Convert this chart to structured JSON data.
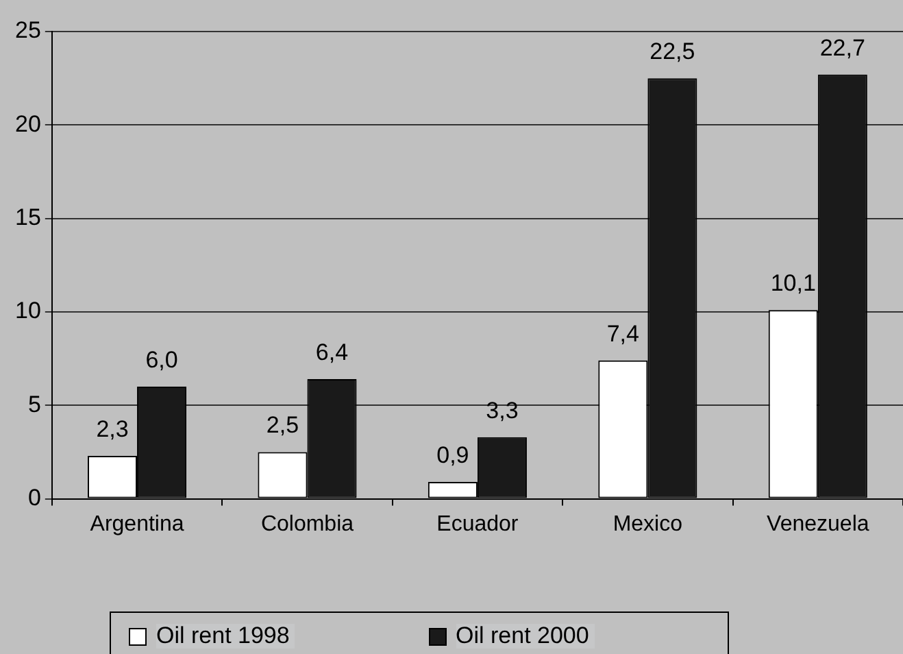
{
  "chart_data": {
    "type": "bar",
    "categories": [
      "Argentina",
      "Colombia",
      "Ecuador",
      "Mexico",
      "Venezuela"
    ],
    "series": [
      {
        "name": "Oil rent 1998",
        "color": "#ffffff",
        "values": [
          2.3,
          2.5,
          0.9,
          7.4,
          10.1
        ],
        "value_labels": [
          "2,3",
          "2,5",
          "0,9",
          "7,4",
          "10,1"
        ]
      },
      {
        "name": "Oil rent 2000",
        "color": "#1a1a1a",
        "values": [
          6.0,
          6.4,
          3.3,
          22.5,
          22.7
        ],
        "value_labels": [
          "6,0",
          "6,4",
          "3,3",
          "22,5",
          "22,7"
        ]
      }
    ],
    "ylim": [
      0,
      25
    ],
    "yticks": [
      0,
      5,
      10,
      15,
      20,
      25
    ],
    "grid": "y",
    "legend": "bottom"
  }
}
